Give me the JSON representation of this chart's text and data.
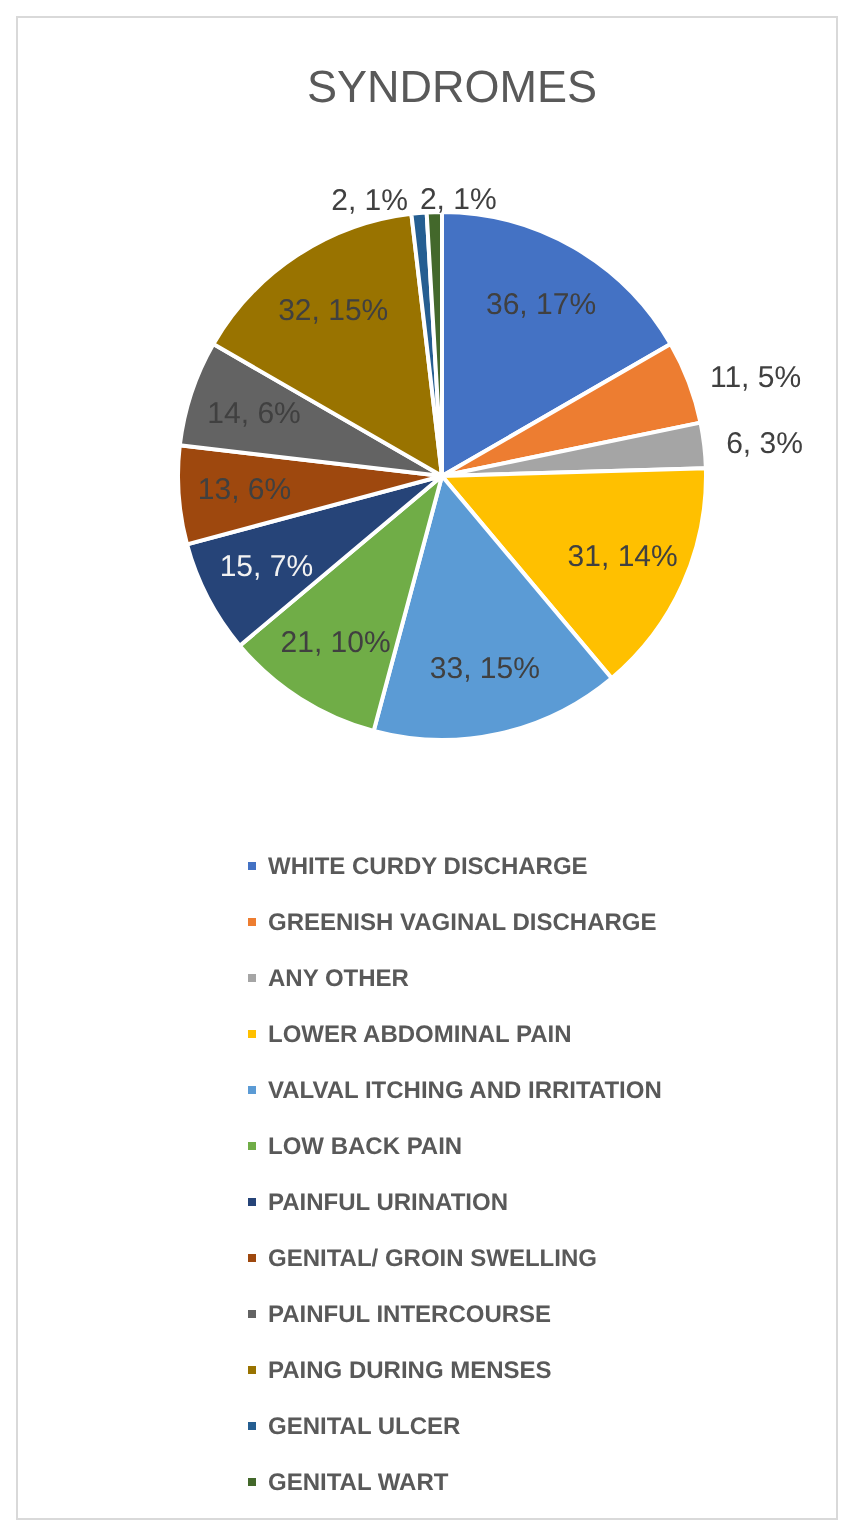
{
  "chart_data": {
    "type": "pie",
    "title": "SYNDROMES",
    "categories": [
      "WHITE CURDY DISCHARGE",
      "GREENISH VAGINAL DISCHARGE",
      "ANY OTHER",
      "LOWER ABDOMINAL PAIN",
      "VALVAL ITCHING AND IRRITATION",
      "LOW BACK PAIN",
      "PAINFUL URINATION",
      "GENITAL/ GROIN SWELLING",
      "PAINFUL INTERCOURSE",
      "PAING DURING MENSES",
      "GENITAL ULCER",
      "GENITAL WART"
    ],
    "values": [
      36,
      11,
      6,
      31,
      33,
      21,
      15,
      13,
      14,
      32,
      2,
      2
    ],
    "colors": [
      "#4472c4",
      "#ed7d31",
      "#a5a5a5",
      "#ffc000",
      "#5b9bd5",
      "#70ad47",
      "#264478",
      "#9e480e",
      "#636363",
      "#997300",
      "#255e91",
      "#43682b"
    ],
    "value_labels": [
      "36, 17%",
      "11, 5%",
      "6, 3%",
      "31, 14%",
      "33, 15%",
      "21, 10%",
      "15, 7%",
      "13, 6%",
      "14, 6%",
      "32, 15%",
      "2, 1%",
      "2, 1%"
    ],
    "legend": "bottom"
  }
}
